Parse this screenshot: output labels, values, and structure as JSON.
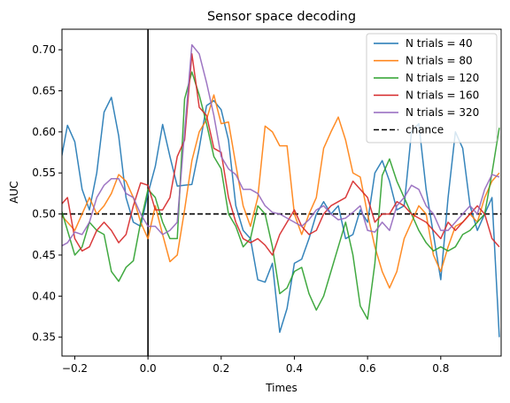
{
  "chart_data": {
    "type": "line",
    "title": "Sensor space decoding",
    "xlabel": "Times",
    "ylabel": "AUC",
    "xlim": [
      -0.235,
      0.965
    ],
    "ylim": [
      0.327,
      0.725
    ],
    "x_ticks": [
      -0.2,
      0.0,
      0.2,
      0.4,
      0.6,
      0.8
    ],
    "x_tick_labels": [
      "−0.2",
      "0.0",
      "0.2",
      "0.4",
      "0.6",
      "0.8"
    ],
    "y_ticks": [
      0.35,
      0.4,
      0.45,
      0.5,
      0.55,
      0.6,
      0.65,
      0.7
    ],
    "y_tick_labels": [
      "0.35",
      "0.40",
      "0.45",
      "0.50",
      "0.55",
      "0.60",
      "0.65",
      "0.70"
    ],
    "grid": false,
    "legend_position": "top-right",
    "x": [
      -0.24,
      -0.22,
      -0.2,
      -0.18,
      -0.16,
      -0.14,
      -0.12,
      -0.1,
      -0.08,
      -0.06,
      -0.04,
      -0.02,
      0.0,
      0.02,
      0.04,
      0.06,
      0.08,
      0.1,
      0.12,
      0.14,
      0.16,
      0.18,
      0.2,
      0.22,
      0.24,
      0.26,
      0.28,
      0.3,
      0.32,
      0.34,
      0.36,
      0.38,
      0.4,
      0.42,
      0.44,
      0.46,
      0.48,
      0.5,
      0.52,
      0.54,
      0.56,
      0.58,
      0.6,
      0.62,
      0.64,
      0.66,
      0.68,
      0.7,
      0.72,
      0.74,
      0.76,
      0.78,
      0.8,
      0.82,
      0.84,
      0.86,
      0.88,
      0.9,
      0.92,
      0.94,
      0.96
    ],
    "series": [
      {
        "name": "N trials = 40",
        "color": "#1f77b4",
        "values": [
          0.56,
          0.608,
          0.588,
          0.53,
          0.505,
          0.55,
          0.624,
          0.642,
          0.595,
          0.52,
          0.49,
          0.485,
          0.525,
          0.558,
          0.609,
          0.57,
          0.534,
          0.535,
          0.536,
          0.58,
          0.632,
          0.638,
          0.627,
          0.59,
          0.51,
          0.48,
          0.47,
          0.42,
          0.417,
          0.44,
          0.356,
          0.385,
          0.44,
          0.445,
          0.47,
          0.5,
          0.515,
          0.5,
          0.51,
          0.47,
          0.475,
          0.505,
          0.49,
          0.55,
          0.565,
          0.54,
          0.505,
          0.51,
          0.6,
          0.61,
          0.53,
          0.475,
          0.42,
          0.52,
          0.6,
          0.58,
          0.51,
          0.48,
          0.5,
          0.52,
          0.35
        ]
      },
      {
        "name": "N trials = 80",
        "color": "#ff7f0e",
        "values": [
          0.5,
          0.49,
          0.48,
          0.5,
          0.52,
          0.5,
          0.51,
          0.525,
          0.548,
          0.54,
          0.52,
          0.49,
          0.47,
          0.51,
          0.475,
          0.442,
          0.45,
          0.505,
          0.565,
          0.6,
          0.615,
          0.645,
          0.61,
          0.612,
          0.56,
          0.51,
          0.485,
          0.52,
          0.607,
          0.6,
          0.583,
          0.583,
          0.5,
          0.475,
          0.5,
          0.52,
          0.58,
          0.6,
          0.618,
          0.59,
          0.55,
          0.545,
          0.5,
          0.46,
          0.43,
          0.41,
          0.43,
          0.47,
          0.49,
          0.51,
          0.5,
          0.45,
          0.43,
          0.46,
          0.485,
          0.49,
          0.5,
          0.49,
          0.52,
          0.54,
          0.55
        ]
      },
      {
        "name": "N trials = 120",
        "color": "#2ca02c",
        "values": [
          0.51,
          0.48,
          0.45,
          0.46,
          0.49,
          0.48,
          0.475,
          0.43,
          0.418,
          0.435,
          0.443,
          0.49,
          0.53,
          0.52,
          0.49,
          0.47,
          0.47,
          0.64,
          0.673,
          0.645,
          0.61,
          0.57,
          0.555,
          0.5,
          0.485,
          0.46,
          0.47,
          0.51,
          0.5,
          0.46,
          0.403,
          0.41,
          0.43,
          0.435,
          0.403,
          0.383,
          0.4,
          0.43,
          0.46,
          0.49,
          0.45,
          0.388,
          0.372,
          0.44,
          0.547,
          0.567,
          0.54,
          0.52,
          0.5,
          0.48,
          0.465,
          0.455,
          0.46,
          0.455,
          0.46,
          0.475,
          0.48,
          0.49,
          0.5,
          0.55,
          0.605
        ]
      },
      {
        "name": "N trials = 160",
        "color": "#d62728",
        "values": [
          0.51,
          0.52,
          0.47,
          0.455,
          0.46,
          0.48,
          0.49,
          0.48,
          0.465,
          0.475,
          0.51,
          0.538,
          0.535,
          0.505,
          0.505,
          0.52,
          0.57,
          0.59,
          0.695,
          0.63,
          0.62,
          0.58,
          0.575,
          0.52,
          0.49,
          0.47,
          0.465,
          0.47,
          0.462,
          0.45,
          0.475,
          0.49,
          0.505,
          0.485,
          0.475,
          0.48,
          0.5,
          0.51,
          0.515,
          0.52,
          0.54,
          0.53,
          0.52,
          0.49,
          0.5,
          0.5,
          0.515,
          0.51,
          0.5,
          0.495,
          0.49,
          0.48,
          0.47,
          0.49,
          0.48,
          0.49,
          0.5,
          0.51,
          0.5,
          0.47,
          0.46
        ]
      },
      {
        "name": "N trials = 320",
        "color": "#9467bd",
        "values": [
          0.46,
          0.465,
          0.478,
          0.475,
          0.49,
          0.52,
          0.535,
          0.543,
          0.543,
          0.525,
          0.52,
          0.5,
          0.485,
          0.485,
          0.475,
          0.48,
          0.49,
          0.6,
          0.706,
          0.695,
          0.66,
          0.62,
          0.57,
          0.555,
          0.548,
          0.53,
          0.53,
          0.525,
          0.51,
          0.502,
          0.5,
          0.495,
          0.49,
          0.485,
          0.493,
          0.505,
          0.51,
          0.5,
          0.493,
          0.495,
          0.502,
          0.51,
          0.48,
          0.478,
          0.49,
          0.48,
          0.51,
          0.52,
          0.535,
          0.53,
          0.51,
          0.5,
          0.48,
          0.48,
          0.49,
          0.5,
          0.51,
          0.5,
          0.53,
          0.548,
          0.545
        ]
      }
    ],
    "reference_lines": [
      {
        "name": "chance",
        "type": "horizontal",
        "y": 0.5,
        "color": "#000000",
        "style": "dashed",
        "in_legend": true
      },
      {
        "name": "onset",
        "type": "vertical",
        "x": 0.0,
        "color": "#000000",
        "style": "solid",
        "in_legend": false
      }
    ],
    "legend": [
      "N trials = 40",
      "N trials = 80",
      "N trials = 120",
      "N trials = 160",
      "N trials = 320",
      "chance"
    ]
  }
}
